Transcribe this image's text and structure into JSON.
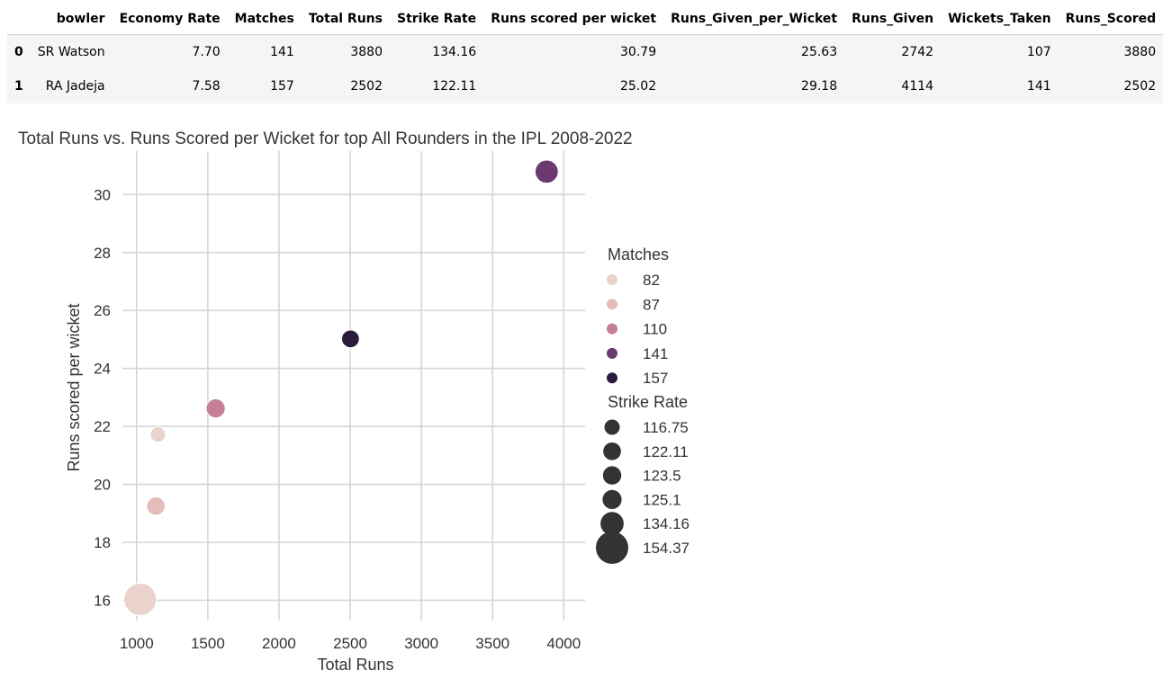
{
  "table": {
    "columns": [
      "",
      "bowler",
      "Economy Rate",
      "Matches",
      "Total Runs",
      "Strike Rate",
      "Runs scored per wicket",
      "Runs_Given_per_Wicket",
      "Runs_Given",
      "Wickets_Taken",
      "Runs_Scored"
    ],
    "rows": [
      [
        "0",
        "SR Watson",
        "7.70",
        "141",
        "3880",
        "134.16",
        "30.79",
        "25.63",
        "2742",
        "107",
        "3880"
      ],
      [
        "1",
        "RA Jadeja",
        "7.58",
        "157",
        "2502",
        "122.11",
        "25.02",
        "29.18",
        "4114",
        "141",
        "2502"
      ]
    ]
  },
  "chart_data": {
    "type": "scatter",
    "title": "Total Runs vs. Runs Scored per Wicket for top All Rounders in the IPL 2008-2022",
    "xlabel": "Total Runs",
    "ylabel": "Runs scored per wicket",
    "xlim": [
      900,
      4150
    ],
    "ylim": [
      15.3,
      31.5
    ],
    "xticks": [
      1000,
      1500,
      2000,
      2500,
      3000,
      3500,
      4000
    ],
    "yticks": [
      16,
      18,
      20,
      22,
      24,
      26,
      28,
      30
    ],
    "grid": true,
    "legend_position": "right",
    "points": [
      {
        "x": 3880,
        "y": 30.79,
        "matches": 141,
        "strike_rate": 134.16
      },
      {
        "x": 2502,
        "y": 25.02,
        "matches": 157,
        "strike_rate": 122.11
      },
      {
        "x": 1555,
        "y": 22.62,
        "matches": 110,
        "strike_rate": 125.1
      },
      {
        "x": 1150,
        "y": 21.72,
        "matches": 82,
        "strike_rate": 116.75
      },
      {
        "x": 1135,
        "y": 19.25,
        "matches": 87,
        "strike_rate": 123.5
      },
      {
        "x": 1025,
        "y": 16.03,
        "matches": 82,
        "strike_rate": 154.37
      }
    ],
    "hue_legend": {
      "title": "Matches",
      "entries": [
        {
          "label": "82",
          "color": "#ead2cd"
        },
        {
          "label": "87",
          "color": "#e4bcb9"
        },
        {
          "label": "110",
          "color": "#c57f98"
        },
        {
          "label": "141",
          "color": "#6c3a70"
        },
        {
          "label": "157",
          "color": "#2b1a3c"
        }
      ]
    },
    "size_legend": {
      "title": "Strike Rate",
      "entries": [
        {
          "label": "116.75",
          "value": 116.75
        },
        {
          "label": "122.11",
          "value": 122.11
        },
        {
          "label": "123.5",
          "value": 123.5
        },
        {
          "label": "125.1",
          "value": 125.1
        },
        {
          "label": "134.16",
          "value": 134.16
        },
        {
          "label": "154.37",
          "value": 154.37
        }
      ]
    },
    "colors": {
      "grid": "#d6d6d6",
      "legend_marker": "#333333",
      "text": "#333333"
    }
  }
}
